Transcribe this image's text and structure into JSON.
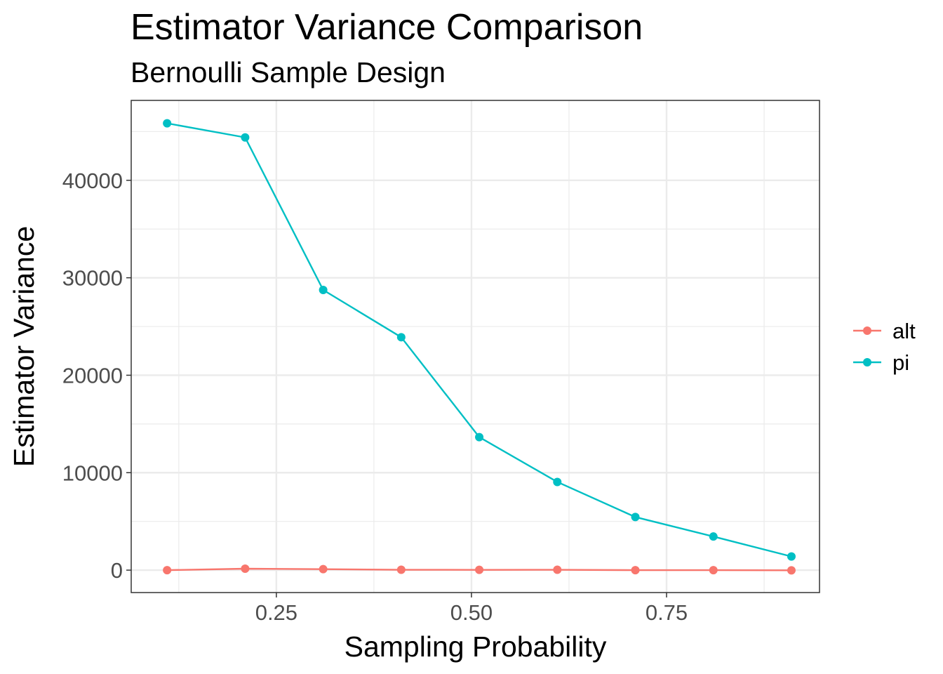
{
  "chart_data": {
    "type": "line",
    "title": "Estimator Variance Comparison",
    "subtitle": "Bernoulli Sample Design",
    "xlabel": "Sampling Probability",
    "ylabel": "Estimator Variance",
    "xlim": [
      0.064,
      0.946
    ],
    "ylim": [
      -2300,
      48200
    ],
    "x_ticks": [
      0.25,
      0.5,
      0.75
    ],
    "x_tick_labels": [
      "0.25",
      "0.50",
      "0.75"
    ],
    "x_minor_ticks": [
      0.125,
      0.375,
      0.625,
      0.875
    ],
    "y_ticks": [
      0,
      10000,
      20000,
      30000,
      40000
    ],
    "y_tick_labels": [
      "0",
      "10000",
      "20000",
      "30000",
      "40000"
    ],
    "y_minor_ticks": [
      5000,
      15000,
      25000,
      35000,
      45000
    ],
    "grid": true,
    "legend_position": "right",
    "x": [
      0.11,
      0.21,
      0.31,
      0.41,
      0.51,
      0.61,
      0.71,
      0.81,
      0.91
    ],
    "series": [
      {
        "name": "alt",
        "color": "#F8766D",
        "values": [
          0,
          150,
          100,
          40,
          30,
          40,
          0,
          0,
          -20
        ]
      },
      {
        "name": "pi",
        "color": "#00BFC4",
        "values": [
          45850,
          44400,
          28750,
          23900,
          13650,
          9050,
          5450,
          3450,
          1400
        ]
      }
    ]
  }
}
